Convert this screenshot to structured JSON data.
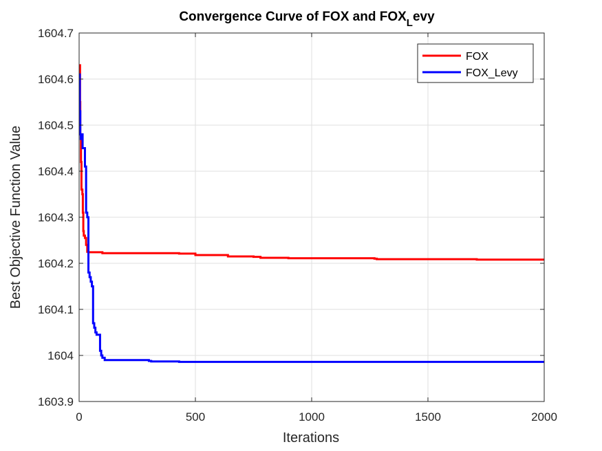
{
  "chart_data": {
    "type": "line",
    "title": {
      "main": "Convergence Curve of FOX and FOX",
      "sub": "L",
      "tail": "evy"
    },
    "xlabel": "Iterations",
    "ylabel": "Best Objective Function Value",
    "xlim": [
      0,
      2000
    ],
    "ylim": [
      1603.9,
      1604.7
    ],
    "xticks": [
      0,
      500,
      1000,
      1500,
      2000
    ],
    "xtick_labels": [
      "0",
      "500",
      "1000",
      "1500",
      "2000"
    ],
    "yticks": [
      1603.9,
      1604.0,
      1604.1,
      1604.2,
      1604.3,
      1604.4,
      1604.5,
      1604.6,
      1604.7
    ],
    "ytick_labels": [
      "1603.9",
      "1604",
      "1604.1",
      "1604.2",
      "1604.3",
      "1604.4",
      "1604.5",
      "1604.6",
      "1604.7"
    ],
    "grid": true,
    "legend_position": "top-right",
    "series": [
      {
        "name": "FOX",
        "color": "#ff0000",
        "x": [
          1,
          4,
          5,
          8,
          10,
          14,
          16,
          18,
          20,
          25,
          30,
          35,
          40,
          80,
          100,
          200,
          300,
          420,
          430,
          500,
          620,
          640,
          750,
          780,
          900,
          1000,
          1270,
          1280,
          1500,
          1700,
          1710,
          2000
        ],
        "y": [
          1604.63,
          1604.55,
          1604.48,
          1604.42,
          1604.36,
          1604.35,
          1604.31,
          1604.27,
          1604.26,
          1604.255,
          1604.24,
          1604.225,
          1604.224,
          1604.224,
          1604.222,
          1604.222,
          1604.222,
          1604.222,
          1604.221,
          1604.218,
          1604.218,
          1604.215,
          1604.214,
          1604.212,
          1604.211,
          1604.211,
          1604.21,
          1604.209,
          1604.209,
          1604.209,
          1604.208,
          1604.208
        ]
      },
      {
        "name": "FOX_Levy",
        "color": "#0000ff",
        "x": [
          1,
          3,
          5,
          7,
          10,
          15,
          20,
          25,
          30,
          35,
          40,
          45,
          50,
          55,
          60,
          65,
          70,
          75,
          80,
          85,
          90,
          95,
          100,
          110,
          200,
          300,
          310,
          430,
          500,
          1000,
          1500,
          2000
        ],
        "y": [
          1604.61,
          1604.53,
          1604.48,
          1604.47,
          1604.48,
          1604.45,
          1604.45,
          1604.41,
          1604.31,
          1604.3,
          1604.18,
          1604.17,
          1604.16,
          1604.15,
          1604.07,
          1604.06,
          1604.05,
          1604.045,
          1604.045,
          1604.045,
          1604.01,
          1604.0,
          1603.995,
          1603.99,
          1603.99,
          1603.988,
          1603.987,
          1603.986,
          1603.986,
          1603.986,
          1603.986,
          1603.986
        ]
      }
    ]
  }
}
